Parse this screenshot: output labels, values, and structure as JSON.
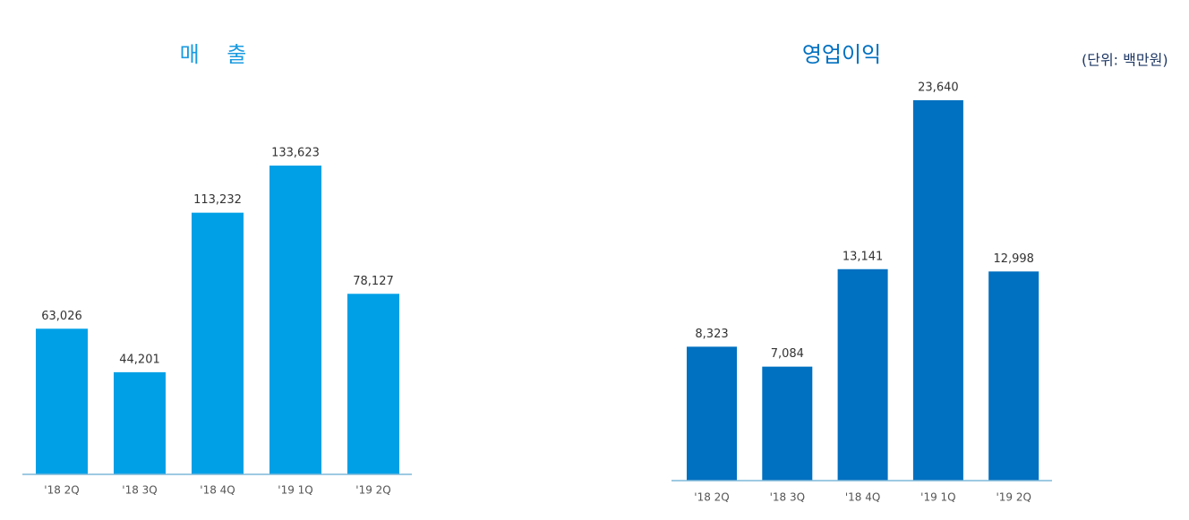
{
  "chart_data": [
    {
      "type": "bar",
      "title": "매    출",
      "color": "#00a0e6",
      "categories": [
        "'18 2Q",
        "'18 3Q",
        "'18 4Q",
        "'19 1Q",
        "'19 2Q"
      ],
      "values": [
        63026,
        44201,
        113232,
        133623,
        78127
      ],
      "value_labels": [
        "63,026",
        "44,201",
        "113,232",
        "133,623",
        "78,127"
      ]
    },
    {
      "type": "bar",
      "title": "영업이익",
      "annotation": "(단위: 백만원)",
      "color": "#0070c0",
      "categories": [
        "'18 2Q",
        "'18 3Q",
        "'18 4Q",
        "'19 1Q",
        "'19 2Q"
      ],
      "values": [
        8323,
        7084,
        13141,
        23640,
        12998
      ],
      "value_labels": [
        "8,323",
        "7,084",
        "13,141",
        "23,640",
        "12,998"
      ]
    }
  ]
}
